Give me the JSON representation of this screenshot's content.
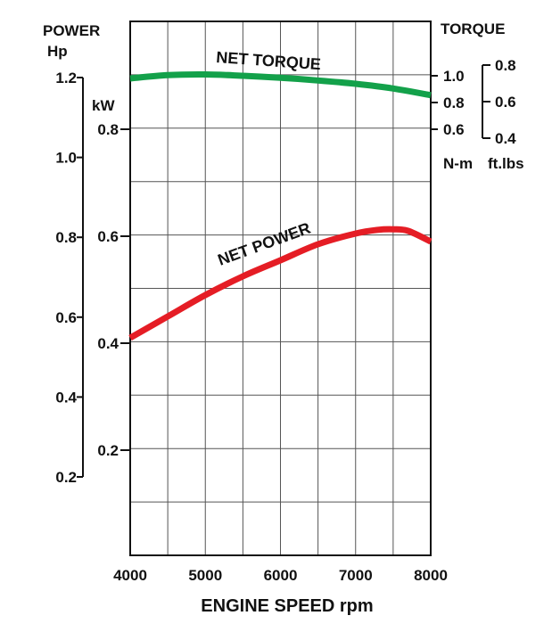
{
  "chart_data": {
    "type": "line",
    "title": "",
    "xlabel": "ENGINE SPEED rpm",
    "x_ticks": [
      4000,
      5000,
      6000,
      7000,
      8000
    ],
    "xlim": [
      4000,
      8000
    ],
    "grid": true,
    "left_axes": [
      {
        "title": "POWER",
        "unit": "Hp",
        "ticks": [
          "1.2",
          "1.0",
          "0.8",
          "0.6",
          "0.4",
          "0.2"
        ]
      },
      {
        "unit": "kW",
        "ticks": [
          "0.8",
          "0.6",
          "0.4",
          "0.2"
        ]
      }
    ],
    "right_axes": [
      {
        "title": "TORQUE",
        "unit": "N-m",
        "ticks": [
          "1.0",
          "0.8",
          "0.6"
        ]
      },
      {
        "unit": "ft.lbs",
        "ticks": [
          "0.8",
          "0.6",
          "0.4"
        ]
      }
    ],
    "series": [
      {
        "name": "NET TORQUE",
        "color": "#13a14a",
        "unit": "N-m",
        "x": [
          4000,
          4500,
          5000,
          5500,
          6000,
          6500,
          7000,
          7500,
          8000
        ],
        "y": [
          0.98,
          1.005,
          1.01,
          1.0,
          0.985,
          0.965,
          0.94,
          0.905,
          0.855
        ]
      },
      {
        "name": "NET POWER",
        "color": "#e51d25",
        "unit": "kW",
        "x": [
          4000,
          4500,
          5000,
          5500,
          6000,
          6500,
          7000,
          7300,
          7500,
          7700,
          8000
        ],
        "y": [
          0.41,
          0.45,
          0.49,
          0.525,
          0.555,
          0.585,
          0.605,
          0.612,
          0.613,
          0.61,
          0.59
        ]
      }
    ]
  }
}
